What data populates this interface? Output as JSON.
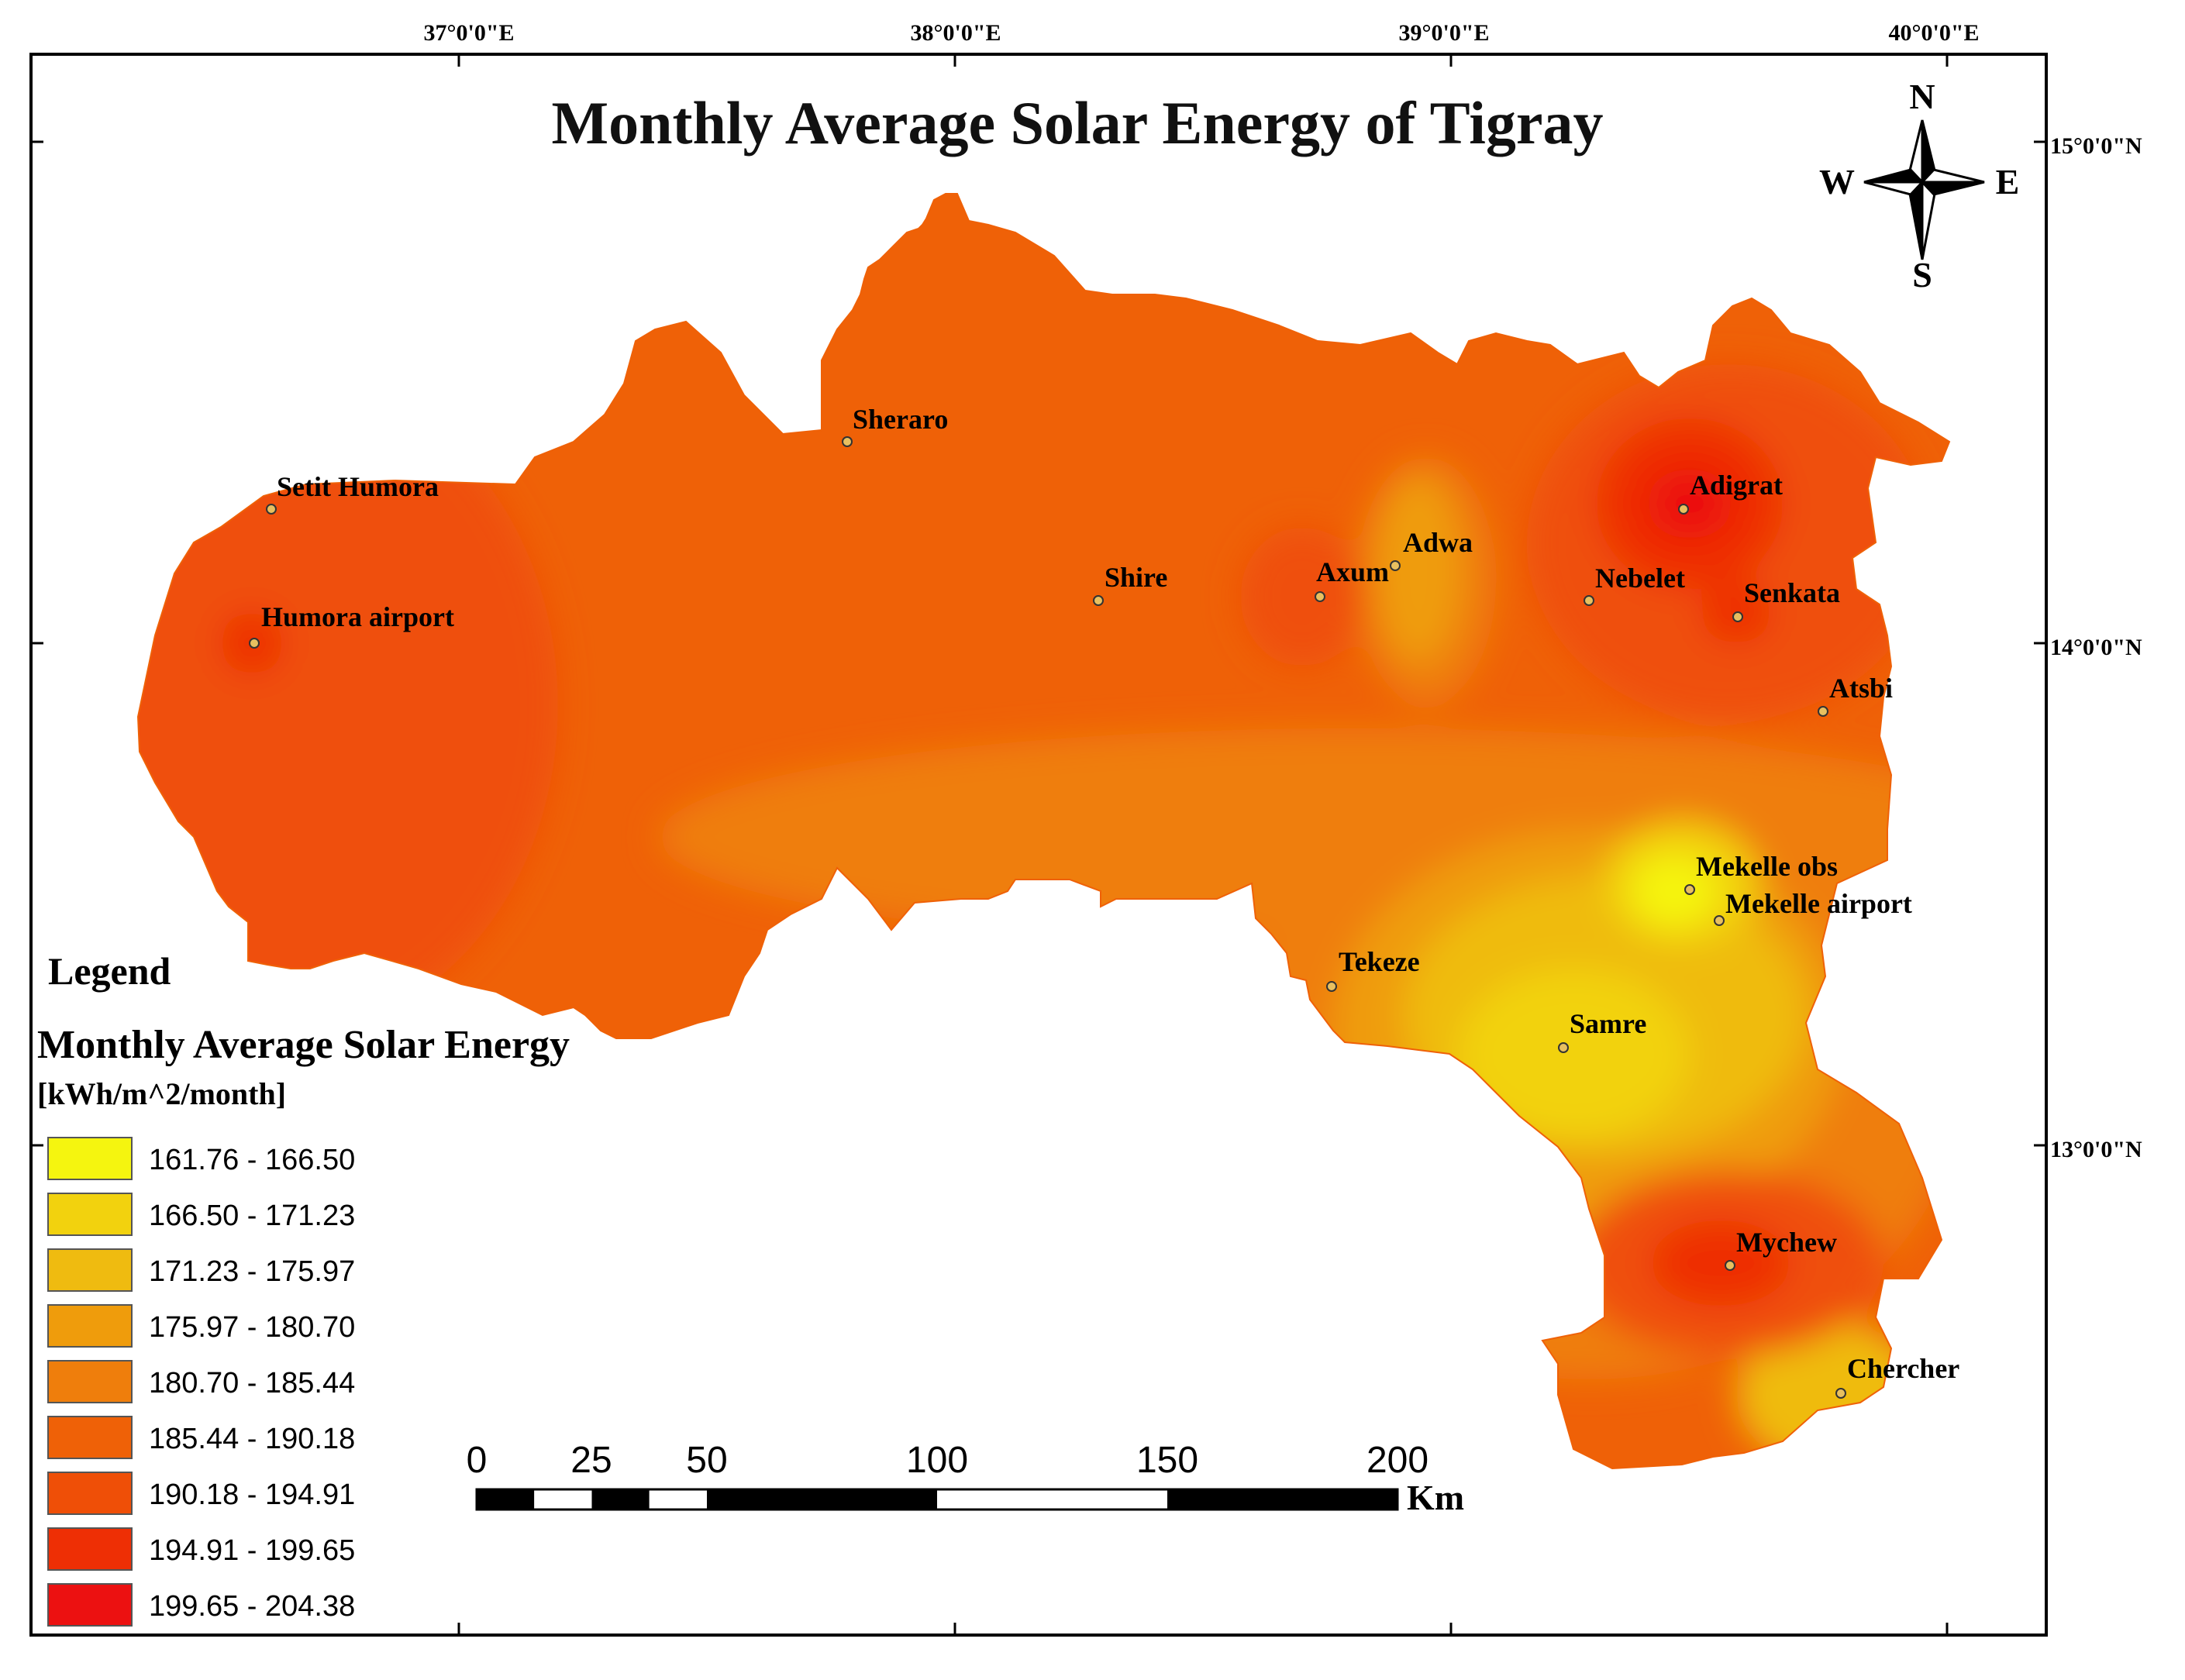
{
  "title": "Monthly Average Solar Energy of Tigray",
  "graticule": {
    "longitudes": [
      "37°0'0\"E",
      "38°0'0\"E",
      "39°0'0\"E",
      "40°0'0\"E"
    ],
    "latitudes": [
      "15°0'0\"N",
      "14°0'0\"N",
      "13°0'0\"N"
    ]
  },
  "north_arrow": {
    "n": "N",
    "s": "S",
    "e": "E",
    "w": "W"
  },
  "legend": {
    "heading": "Legend",
    "field": "Monthly Average Solar Energy",
    "unit": "[kWh/m^2/month]",
    "classes": [
      {
        "label": "161.76 - 166.50",
        "color": "#f5f50f"
      },
      {
        "label": "166.50 - 171.23",
        "color": "#f2d20e"
      },
      {
        "label": "171.23 - 175.97",
        "color": "#efbb10"
      },
      {
        "label": "175.97 - 180.70",
        "color": "#ef9c0c"
      },
      {
        "label": "180.70 - 185.44",
        "color": "#ef7e0c"
      },
      {
        "label": "185.44 - 190.18",
        "color": "#ef6107"
      },
      {
        "label": "190.18 - 194.91",
        "color": "#ef4f07"
      },
      {
        "label": "194.91 - 199.65",
        "color": "#ee2f05"
      },
      {
        "label": "199.65 - 204.38",
        "color": "#ec1111"
      }
    ]
  },
  "scale_bar": {
    "ticks": [
      "0",
      "25",
      "50",
      "100",
      "150",
      "200"
    ],
    "unit": "Km"
  },
  "stations": [
    {
      "name": "Setit Humora"
    },
    {
      "name": "Humora airport"
    },
    {
      "name": "Sheraro"
    },
    {
      "name": "Shire"
    },
    {
      "name": "Axum"
    },
    {
      "name": "Adwa"
    },
    {
      "name": "Nebelet"
    },
    {
      "name": "Adigrat"
    },
    {
      "name": "Senkata"
    },
    {
      "name": "Atsbi"
    },
    {
      "name": "Mekelle obs"
    },
    {
      "name": "Mekelle airport"
    },
    {
      "name": "Tekeze"
    },
    {
      "name": "Samre"
    },
    {
      "name": "Mychew"
    },
    {
      "name": "Chercher"
    }
  ]
}
